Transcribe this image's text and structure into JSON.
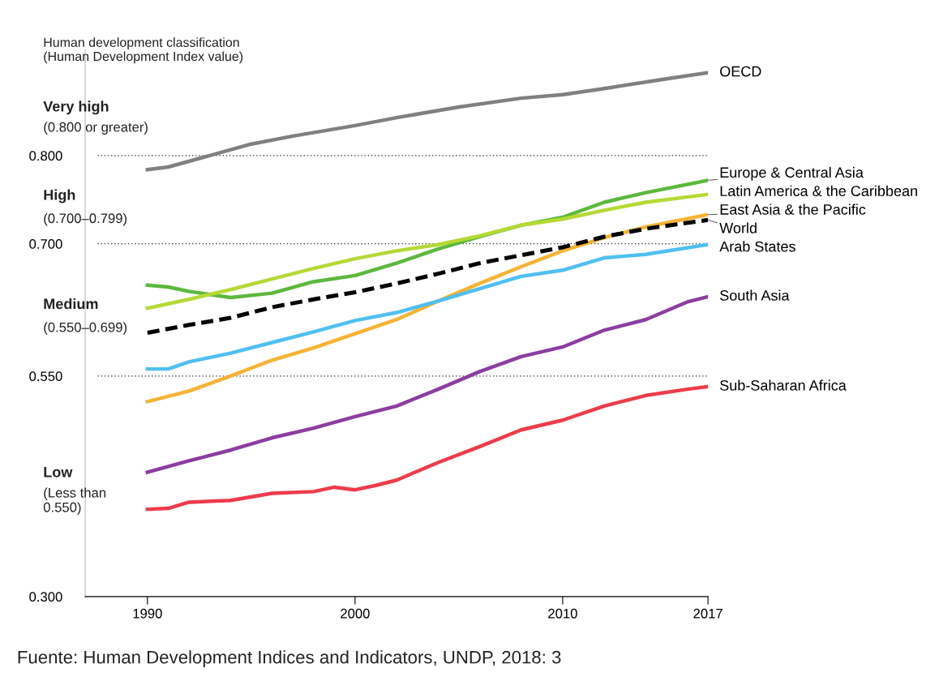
{
  "chart_data": {
    "type": "line",
    "legend": false,
    "grid": false,
    "xlim": [
      1987,
      2017
    ],
    "xticks": [
      1990,
      2000,
      2010,
      2017
    ],
    "ylim": [
      0.3,
      0.92
    ],
    "yticks": [
      {
        "value": 0.3,
        "label": "0.300"
      },
      {
        "value": 0.55,
        "label": "0.550"
      },
      {
        "value": 0.7,
        "label": "0.700"
      },
      {
        "value": 0.8,
        "label": "0.800"
      }
    ],
    "ref_lines": [
      {
        "axis": "y",
        "value": 0.8,
        "line_style": "dotted",
        "color": "#333333"
      },
      {
        "axis": "y",
        "value": 0.7,
        "line_style": "dotted",
        "color": "#333333"
      },
      {
        "axis": "y",
        "value": 0.55,
        "line_style": "dotted",
        "color": "#333333"
      }
    ],
    "series": [
      {
        "name": "OECD",
        "color": "#808080",
        "x": [
          1990,
          1991,
          1993,
          1995,
          1997,
          2000,
          2002,
          2005,
          2008,
          2010,
          2012,
          2015,
          2017
        ],
        "values": [
          0.784,
          0.787,
          0.8,
          0.813,
          0.822,
          0.834,
          0.843,
          0.855,
          0.865,
          0.869,
          0.876,
          0.887,
          0.894
        ]
      },
      {
        "name": "Europe & Central Asia",
        "color": "#5cb83c",
        "x": [
          1990,
          1991,
          1992,
          1994,
          1996,
          1998,
          2000,
          2002,
          2004,
          2006,
          2008,
          2010,
          2012,
          2014,
          2017
        ],
        "values": [
          0.653,
          0.651,
          0.646,
          0.639,
          0.644,
          0.657,
          0.664,
          0.678,
          0.694,
          0.708,
          0.721,
          0.73,
          0.747,
          0.758,
          0.772
        ]
      },
      {
        "name": "Latin America & the Caribbean",
        "color": "#b5d935",
        "x": [
          1990,
          1992,
          1994,
          1996,
          1998,
          2000,
          2002,
          2004,
          2006,
          2008,
          2010,
          2012,
          2014,
          2017
        ],
        "values": [
          0.627,
          0.637,
          0.648,
          0.66,
          0.672,
          0.683,
          0.692,
          0.699,
          0.709,
          0.721,
          0.728,
          0.738,
          0.747,
          0.756
        ]
      },
      {
        "name": "East Asia & the Pacific",
        "color": "#f5b335",
        "x": [
          1990,
          1992,
          1994,
          1996,
          1998,
          2000,
          2002,
          2004,
          2006,
          2008,
          2010,
          2012,
          2014,
          2017
        ],
        "values": [
          0.521,
          0.533,
          0.55,
          0.568,
          0.582,
          0.598,
          0.614,
          0.635,
          0.655,
          0.674,
          0.692,
          0.707,
          0.719,
          0.733
        ]
      },
      {
        "name": "World",
        "color": "#000000",
        "line_style": "dashed",
        "x": [
          1990,
          1992,
          1994,
          1996,
          1998,
          2000,
          2002,
          2004,
          2006,
          2008,
          2010,
          2012,
          2014,
          2017
        ],
        "values": [
          0.599,
          0.608,
          0.616,
          0.628,
          0.637,
          0.645,
          0.655,
          0.666,
          0.678,
          0.687,
          0.696,
          0.708,
          0.717,
          0.727
        ]
      },
      {
        "name": "Arab States",
        "color": "#4fbff0",
        "x": [
          1990,
          1991,
          1992,
          1994,
          1996,
          1998,
          2000,
          2002,
          2004,
          2006,
          2008,
          2010,
          2012,
          2014,
          2017
        ],
        "values": [
          0.558,
          0.558,
          0.566,
          0.576,
          0.588,
          0.6,
          0.613,
          0.622,
          0.635,
          0.649,
          0.663,
          0.67,
          0.684,
          0.688,
          0.699
        ]
      },
      {
        "name": "South Asia",
        "color": "#8b3ea0",
        "x": [
          1990,
          1992,
          1994,
          1996,
          1998,
          2000,
          2002,
          2004,
          2006,
          2008,
          2010,
          2012,
          2014,
          2016,
          2017
        ],
        "values": [
          0.441,
          0.454,
          0.466,
          0.48,
          0.491,
          0.504,
          0.516,
          0.535,
          0.555,
          0.572,
          0.583,
          0.602,
          0.614,
          0.634,
          0.64
        ]
      },
      {
        "name": "Sub-Saharan Africa",
        "color": "#ee3b4b",
        "x": [
          1990,
          1991,
          1992,
          1994,
          1996,
          1998,
          1999,
          2000,
          2001,
          2002,
          2004,
          2006,
          2008,
          2010,
          2012,
          2014,
          2016,
          2017
        ],
        "values": [
          0.399,
          0.4,
          0.407,
          0.409,
          0.417,
          0.419,
          0.424,
          0.421,
          0.426,
          0.432,
          0.452,
          0.47,
          0.489,
          0.5,
          0.516,
          0.528,
          0.535,
          0.538
        ]
      }
    ],
    "annotations": [
      "Human development classification\n(Human Development Index value)",
      "Very high",
      "(0.800 or greater)",
      "High",
      "(0.700–0.799)",
      "Medium",
      "(0.550–0.699)",
      "Low",
      "(Less than\n0.550)",
      "Fuente: Human Development Indices and Indicators, UNDP, 2018: 3"
    ]
  }
}
